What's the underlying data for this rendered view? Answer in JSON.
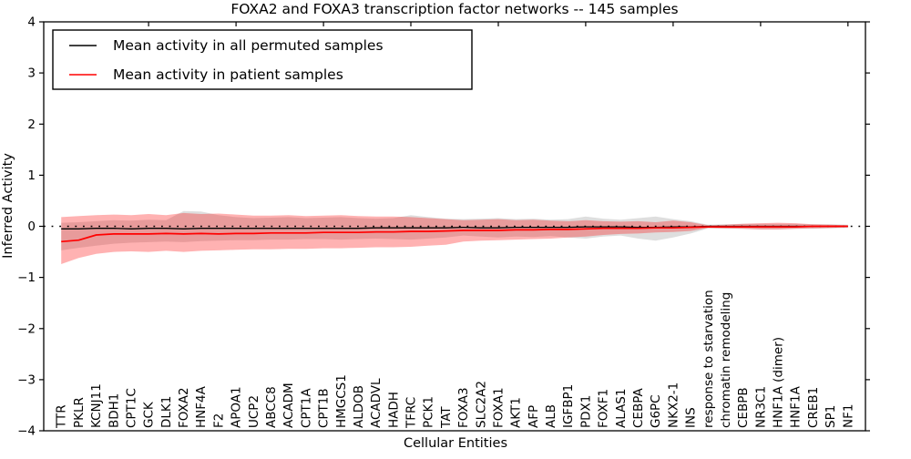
{
  "chart_data": {
    "type": "line",
    "title": "FOXA2 and FOXA3 transcription factor networks -- 145 samples",
    "xlabel": "Cellular Entities",
    "ylabel": "Inferred Activity",
    "ylim": [
      -4,
      4
    ],
    "grid": false,
    "legend_position": "upper left",
    "frame_color": "#000000",
    "zero_line": {
      "y": 0,
      "style": "dotted",
      "color": "#000000"
    },
    "y_ticks": [
      {
        "value": 4,
        "label": "4"
      },
      {
        "value": 3,
        "label": "3"
      },
      {
        "value": 2,
        "label": "2"
      },
      {
        "value": 1,
        "label": "1"
      },
      {
        "value": 0,
        "label": "0"
      },
      {
        "value": -1,
        "label": "−1"
      },
      {
        "value": -2,
        "label": "−2"
      },
      {
        "value": -3,
        "label": "−3"
      },
      {
        "value": -4,
        "label": "−4"
      }
    ],
    "categories": [
      "TTR",
      "PKLR",
      "KCNJ11",
      "BDH1",
      "CPT1C",
      "GCK",
      "DLK1",
      "FOXA2",
      "HNF4A",
      "F2",
      "APOA1",
      "UCP2",
      "ABCC8",
      "ACADM",
      "CPT1A",
      "CPT1B",
      "HMGCS1",
      "ALDOB",
      "ACADVL",
      "HADH",
      "TFRC",
      "PCK1",
      "TAT",
      "FOXA3",
      "SLC2A2",
      "FOXA1",
      "AKT1",
      "AFP",
      "ALB",
      "IGFBP1",
      "PDX1",
      "FOXF1",
      "ALAS1",
      "CEBPA",
      "G6PC",
      "NKX2-1",
      "INS",
      "response to starvation",
      "chromatin remodeling",
      "CEBPB",
      "NR3C1",
      "HNF1A (dimer)",
      "HNF1A",
      "CREB1",
      "SP1",
      "NF1"
    ],
    "series": [
      {
        "name": "Mean activity in all permuted samples",
        "color": "#000000",
        "line_width": 1.3,
        "band_name": "permuted-std-band",
        "band_color": "rgba(0,0,0,0.13)",
        "values": [
          -0.05,
          -0.05,
          -0.04,
          -0.04,
          -0.05,
          -0.04,
          -0.04,
          -0.05,
          -0.04,
          -0.04,
          -0.04,
          -0.04,
          -0.04,
          -0.04,
          -0.04,
          -0.04,
          -0.04,
          -0.04,
          -0.03,
          -0.03,
          -0.03,
          -0.03,
          -0.03,
          -0.02,
          -0.03,
          -0.03,
          -0.02,
          -0.02,
          -0.02,
          -0.02,
          -0.01,
          -0.01,
          -0.01,
          -0.02,
          -0.02,
          -0.01,
          -0.01,
          0.0,
          0.0,
          0.0,
          0.0,
          0.0,
          0.0,
          0.0,
          0.0,
          0.0
        ],
        "band_upper": [
          0.07,
          0.08,
          0.1,
          0.12,
          0.11,
          0.13,
          0.12,
          0.3,
          0.29,
          0.22,
          0.18,
          0.16,
          0.17,
          0.18,
          0.16,
          0.17,
          0.18,
          0.16,
          0.15,
          0.16,
          0.22,
          0.18,
          0.15,
          0.14,
          0.15,
          0.16,
          0.14,
          0.15,
          0.13,
          0.14,
          0.19,
          0.15,
          0.13,
          0.16,
          0.19,
          0.14,
          0.1,
          0.03,
          0.04,
          0.05,
          0.05,
          0.05,
          0.05,
          0.04,
          0.04,
          0.03
        ],
        "band_lower": [
          -0.47,
          -0.42,
          -0.38,
          -0.34,
          -0.32,
          -0.31,
          -0.3,
          -0.31,
          -0.29,
          -0.28,
          -0.27,
          -0.27,
          -0.26,
          -0.26,
          -0.25,
          -0.25,
          -0.26,
          -0.25,
          -0.24,
          -0.25,
          -0.26,
          -0.24,
          -0.22,
          -0.18,
          -0.2,
          -0.22,
          -0.2,
          -0.21,
          -0.19,
          -0.22,
          -0.24,
          -0.2,
          -0.18,
          -0.24,
          -0.28,
          -0.22,
          -0.14,
          -0.04,
          -0.05,
          -0.05,
          -0.06,
          -0.06,
          -0.05,
          -0.05,
          -0.04,
          -0.03
        ]
      },
      {
        "name": "Mean activity in patient samples",
        "color": "#ff0000",
        "line_width": 1.7,
        "band_name": "patient-std-band",
        "band_color": "rgba(255,0,0,0.30)",
        "values": [
          -0.3,
          -0.27,
          -0.17,
          -0.15,
          -0.15,
          -0.15,
          -0.14,
          -0.15,
          -0.14,
          -0.15,
          -0.14,
          -0.14,
          -0.13,
          -0.13,
          -0.13,
          -0.12,
          -0.12,
          -0.12,
          -0.11,
          -0.11,
          -0.1,
          -0.1,
          -0.09,
          -0.08,
          -0.08,
          -0.08,
          -0.07,
          -0.07,
          -0.06,
          -0.06,
          -0.05,
          -0.04,
          -0.04,
          -0.04,
          -0.03,
          -0.03,
          -0.02,
          -0.01,
          -0.01,
          -0.01,
          -0.01,
          -0.01,
          -0.01,
          0.0,
          0.0,
          0.0
        ],
        "band_upper": [
          0.18,
          0.2,
          0.22,
          0.23,
          0.22,
          0.24,
          0.22,
          0.26,
          0.24,
          0.25,
          0.23,
          0.21,
          0.21,
          0.22,
          0.2,
          0.21,
          0.22,
          0.2,
          0.19,
          0.19,
          0.18,
          0.16,
          0.14,
          0.12,
          0.13,
          0.14,
          0.12,
          0.13,
          0.11,
          0.1,
          0.12,
          0.1,
          0.09,
          0.1,
          0.08,
          0.11,
          0.08,
          0.02,
          0.03,
          0.05,
          0.06,
          0.07,
          0.06,
          0.04,
          0.03,
          0.02
        ],
        "band_lower": [
          -0.74,
          -0.62,
          -0.54,
          -0.5,
          -0.49,
          -0.5,
          -0.48,
          -0.5,
          -0.48,
          -0.47,
          -0.46,
          -0.45,
          -0.45,
          -0.44,
          -0.44,
          -0.43,
          -0.43,
          -0.42,
          -0.41,
          -0.41,
          -0.4,
          -0.38,
          -0.36,
          -0.3,
          -0.28,
          -0.27,
          -0.26,
          -0.25,
          -0.24,
          -0.22,
          -0.2,
          -0.17,
          -0.15,
          -0.14,
          -0.12,
          -0.11,
          -0.09,
          -0.03,
          -0.04,
          -0.05,
          -0.06,
          -0.06,
          -0.05,
          -0.04,
          -0.03,
          -0.02
        ]
      }
    ]
  }
}
